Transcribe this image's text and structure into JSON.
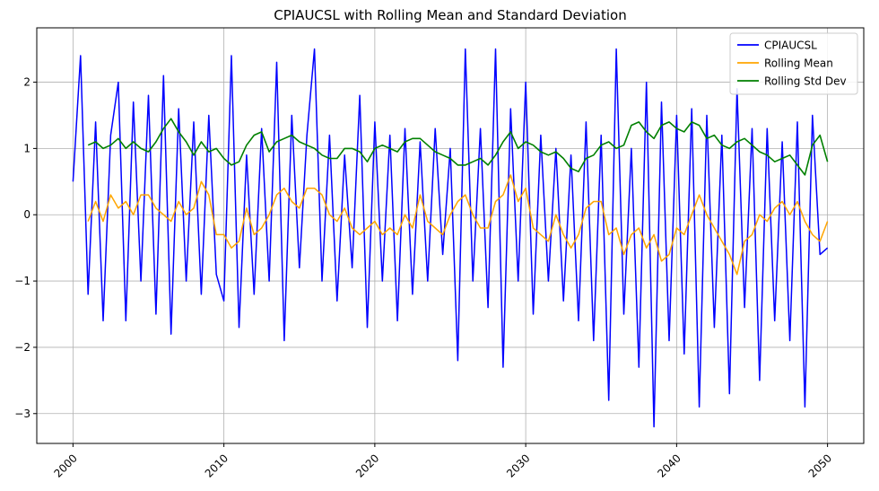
{
  "chart_data": {
    "type": "line",
    "title": "CPIAUCSL with Rolling Mean and Standard Deviation",
    "xlabel": "",
    "ylabel": "",
    "xlim": [
      1997.6,
      2052.4
    ],
    "ylim": [
      -3.45,
      2.82
    ],
    "x_ticks": [
      2000,
      2010,
      2020,
      2030,
      2040,
      2050
    ],
    "x_tick_labels": [
      "2000",
      "2010",
      "2020",
      "2030",
      "2040",
      "2050"
    ],
    "y_ticks": [
      -3,
      -2,
      -1,
      0,
      1,
      2
    ],
    "y_tick_labels": [
      "−3",
      "−2",
      "−1",
      "0",
      "1",
      "2"
    ],
    "grid": true,
    "legend_position": "top-right",
    "series": [
      {
        "name": "CPIAUCSL",
        "color": "#0000ff",
        "x": [
          2000,
          2000.5,
          2001,
          2001.5,
          2002,
          2002.5,
          2003,
          2003.5,
          2004,
          2004.5,
          2005,
          2005.5,
          2006,
          2006.5,
          2007,
          2007.5,
          2008,
          2008.5,
          2009,
          2009.5,
          2010,
          2010.5,
          2011,
          2011.5,
          2012,
          2012.5,
          2013,
          2013.5,
          2014,
          2014.5,
          2015,
          2015.5,
          2016,
          2016.5,
          2017,
          2017.5,
          2018,
          2018.5,
          2019,
          2019.5,
          2020,
          2020.5,
          2021,
          2021.5,
          2022,
          2022.5,
          2023,
          2023.5,
          2024,
          2024.5,
          2025,
          2025.5,
          2026,
          2026.5,
          2027,
          2027.5,
          2028,
          2028.5,
          2029,
          2029.5,
          2030,
          2030.5,
          2031,
          2031.5,
          2032,
          2032.5,
          2033,
          2033.5,
          2034,
          2034.5,
          2035,
          2035.5,
          2036,
          2036.5,
          2037,
          2037.5,
          2038,
          2038.5,
          2039,
          2039.5,
          2040,
          2040.5,
          2041,
          2041.5,
          2042,
          2042.5,
          2043,
          2043.5,
          2044,
          2044.5,
          2045,
          2045.5,
          2046,
          2046.5,
          2047,
          2047.5,
          2048,
          2048.5,
          2049,
          2049.5,
          2050
        ],
        "y": [
          0.5,
          2.4,
          -1.2,
          1.4,
          -1.6,
          1.2,
          2.0,
          -1.6,
          1.7,
          -1.0,
          1.8,
          -1.5,
          2.1,
          -1.8,
          1.6,
          -1.0,
          1.4,
          -1.2,
          1.5,
          -0.9,
          -1.3,
          2.4,
          -1.7,
          0.9,
          -1.2,
          1.3,
          -1.0,
          2.3,
          -1.9,
          1.5,
          -0.8,
          1.2,
          2.5,
          -1.0,
          1.2,
          -1.3,
          0.9,
          -0.8,
          1.8,
          -1.7,
          1.4,
          -1.0,
          1.2,
          -1.6,
          1.3,
          -1.2,
          1.1,
          -1.0,
          1.3,
          -0.6,
          1.0,
          -2.2,
          2.5,
          -1.0,
          1.3,
          -1.4,
          2.5,
          -2.3,
          1.6,
          -1.0,
          2.0,
          -1.5,
          1.2,
          -1.0,
          1.0,
          -1.3,
          0.9,
          -1.6,
          1.4,
          -1.9,
          1.2,
          -2.8,
          2.5,
          -1.5,
          1.0,
          -2.3,
          2.0,
          -3.2,
          1.7,
          -1.9,
          1.5,
          -2.1,
          1.6,
          -2.9,
          1.5,
          -1.7,
          1.2,
          -2.7,
          1.9,
          -1.4,
          1.3,
          -2.5,
          1.3,
          -1.6,
          1.1,
          -1.9,
          1.4,
          -2.9,
          1.5,
          -0.6,
          -0.5
        ]
      },
      {
        "name": "Rolling Mean",
        "color": "#ffa500",
        "x": [
          2001,
          2001.5,
          2002,
          2002.5,
          2003,
          2003.5,
          2004,
          2004.5,
          2005,
          2005.5,
          2006,
          2006.5,
          2007,
          2007.5,
          2008,
          2008.5,
          2009,
          2009.5,
          2010,
          2010.5,
          2011,
          2011.5,
          2012,
          2012.5,
          2013,
          2013.5,
          2014,
          2014.5,
          2015,
          2015.5,
          2016,
          2016.5,
          2017,
          2017.5,
          2018,
          2018.5,
          2019,
          2019.5,
          2020,
          2020.5,
          2021,
          2021.5,
          2022,
          2022.5,
          2023,
          2023.5,
          2024,
          2024.5,
          2025,
          2025.5,
          2026,
          2026.5,
          2027,
          2027.5,
          2028,
          2028.5,
          2029,
          2029.5,
          2030,
          2030.5,
          2031,
          2031.5,
          2032,
          2032.5,
          2033,
          2033.5,
          2034,
          2034.5,
          2035,
          2035.5,
          2036,
          2036.5,
          2037,
          2037.5,
          2038,
          2038.5,
          2039,
          2039.5,
          2040,
          2040.5,
          2041,
          2041.5,
          2042,
          2042.5,
          2043,
          2043.5,
          2044,
          2044.5,
          2045,
          2045.5,
          2046,
          2046.5,
          2047,
          2047.5,
          2048,
          2048.5,
          2049,
          2049.5,
          2050
        ],
        "y": [
          -0.1,
          0.2,
          -0.1,
          0.3,
          0.1,
          0.2,
          0.0,
          0.3,
          0.3,
          0.1,
          0.0,
          -0.1,
          0.2,
          0.0,
          0.1,
          0.5,
          0.3,
          -0.3,
          -0.3,
          -0.5,
          -0.4,
          0.1,
          -0.3,
          -0.2,
          0.0,
          0.3,
          0.4,
          0.2,
          0.1,
          0.4,
          0.4,
          0.3,
          0.0,
          -0.1,
          0.1,
          -0.2,
          -0.3,
          -0.2,
          -0.1,
          -0.3,
          -0.2,
          -0.3,
          0.0,
          -0.2,
          0.3,
          -0.1,
          -0.2,
          -0.3,
          0.0,
          0.2,
          0.3,
          0.0,
          -0.2,
          -0.2,
          0.2,
          0.3,
          0.6,
          0.2,
          0.4,
          -0.2,
          -0.3,
          -0.4,
          0.0,
          -0.3,
          -0.5,
          -0.3,
          0.1,
          0.2,
          0.2,
          -0.3,
          -0.2,
          -0.6,
          -0.3,
          -0.2,
          -0.5,
          -0.3,
          -0.7,
          -0.6,
          -0.2,
          -0.3,
          0.0,
          0.3,
          0.0,
          -0.2,
          -0.4,
          -0.6,
          -0.9,
          -0.4,
          -0.3,
          0.0,
          -0.1,
          0.1,
          0.2,
          0.0,
          0.2,
          -0.1,
          -0.3,
          -0.4,
          -0.1
        ]
      },
      {
        "name": "Rolling Std Dev",
        "color": "#008000",
        "x": [
          2001,
          2001.5,
          2002,
          2002.5,
          2003,
          2003.5,
          2004,
          2004.5,
          2005,
          2005.5,
          2006,
          2006.5,
          2007,
          2007.5,
          2008,
          2008.5,
          2009,
          2009.5,
          2010,
          2010.5,
          2011,
          2011.5,
          2012,
          2012.5,
          2013,
          2013.5,
          2014,
          2014.5,
          2015,
          2015.5,
          2016,
          2016.5,
          2017,
          2017.5,
          2018,
          2018.5,
          2019,
          2019.5,
          2020,
          2020.5,
          2021,
          2021.5,
          2022,
          2022.5,
          2023,
          2023.5,
          2024,
          2024.5,
          2025,
          2025.5,
          2026,
          2026.5,
          2027,
          2027.5,
          2028,
          2028.5,
          2029,
          2029.5,
          2030,
          2030.5,
          2031,
          2031.5,
          2032,
          2032.5,
          2033,
          2033.5,
          2034,
          2034.5,
          2035,
          2035.5,
          2036,
          2036.5,
          2037,
          2037.5,
          2038,
          2038.5,
          2039,
          2039.5,
          2040,
          2040.5,
          2041,
          2041.5,
          2042,
          2042.5,
          2043,
          2043.5,
          2044,
          2044.5,
          2045,
          2045.5,
          2046,
          2046.5,
          2047,
          2047.5,
          2048,
          2048.5,
          2049,
          2049.5,
          2050
        ],
        "y": [
          1.05,
          1.1,
          1.0,
          1.05,
          1.15,
          1.0,
          1.1,
          1.0,
          0.95,
          1.1,
          1.3,
          1.45,
          1.25,
          1.1,
          0.9,
          1.1,
          0.95,
          1.0,
          0.85,
          0.75,
          0.8,
          1.05,
          1.2,
          1.25,
          0.95,
          1.1,
          1.15,
          1.2,
          1.1,
          1.05,
          1.0,
          0.9,
          0.85,
          0.85,
          1.0,
          1.0,
          0.95,
          0.8,
          1.0,
          1.05,
          1.0,
          0.95,
          1.1,
          1.15,
          1.15,
          1.05,
          0.95,
          0.9,
          0.85,
          0.75,
          0.75,
          0.8,
          0.85,
          0.75,
          0.9,
          1.1,
          1.25,
          1.0,
          1.1,
          1.05,
          0.95,
          0.9,
          0.95,
          0.85,
          0.7,
          0.65,
          0.85,
          0.9,
          1.05,
          1.1,
          1.0,
          1.05,
          1.35,
          1.4,
          1.25,
          1.15,
          1.35,
          1.4,
          1.3,
          1.25,
          1.4,
          1.35,
          1.15,
          1.2,
          1.05,
          1.0,
          1.1,
          1.15,
          1.05,
          0.95,
          0.9,
          0.8,
          0.85,
          0.9,
          0.75,
          0.6,
          1.05,
          1.2,
          0.8
        ]
      }
    ]
  }
}
